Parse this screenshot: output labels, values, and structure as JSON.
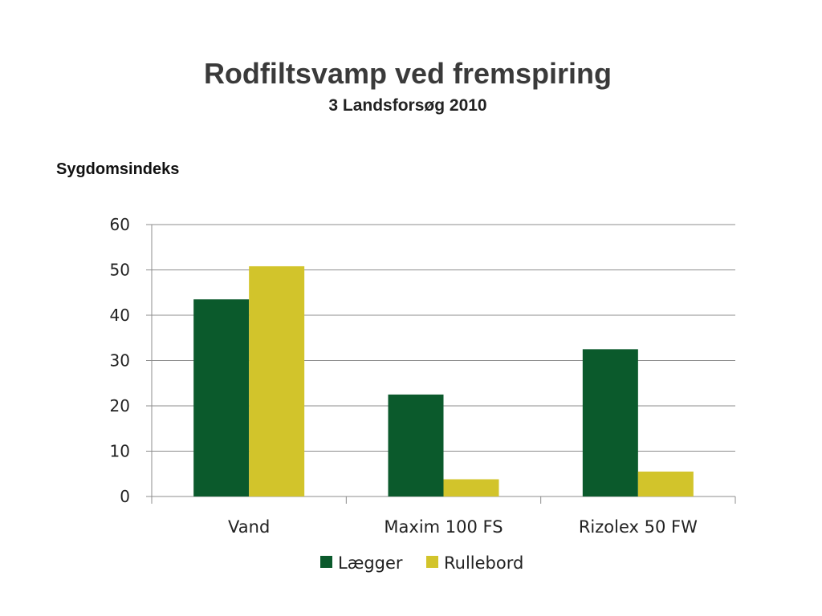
{
  "slide": {
    "title": "Rodfiltsvamp ved fremspiring",
    "subtitle": "3 Landsforsøg 2010",
    "y_caption": "Sygdomsindeks"
  },
  "colors": {
    "series_1": "#0b5a2c",
    "series_2": "#d2c42b",
    "grid": "#8c8c8c",
    "axis": "#8c8c8c"
  },
  "chart_data": {
    "type": "bar",
    "title": "",
    "xlabel": "",
    "ylabel": "Sygdomsindeks",
    "categories": [
      "Vand",
      "Maxim 100 FS",
      "Rizolex 50 FW"
    ],
    "series": [
      {
        "name": "Lægger",
        "values": [
          43.5,
          22.5,
          32.5
        ]
      },
      {
        "name": "Rullebord",
        "values": [
          50.8,
          3.8,
          5.5
        ]
      }
    ],
    "ylim": [
      0,
      60
    ],
    "yticks": [
      0,
      10,
      20,
      30,
      40,
      50,
      60
    ],
    "grid": true,
    "legend_position": "bottom"
  }
}
